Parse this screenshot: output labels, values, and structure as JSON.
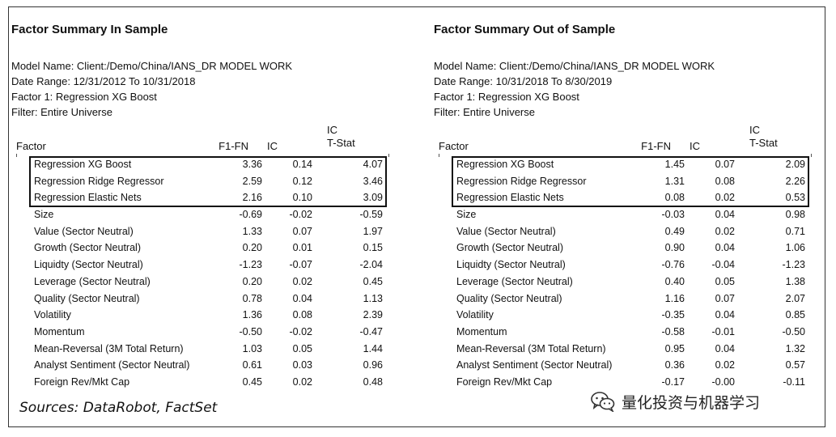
{
  "left": {
    "title": "Factor Summary In Sample",
    "model_name": "Model Name: Client:/Demo/China/IANS_DR MODEL WORK",
    "date_range": "Date Range: 12/31/2012 To 10/31/2018",
    "factor1": "Factor 1: Regression XG Boost",
    "filter": "Filter: Entire Universe",
    "headers": {
      "factor": "Factor",
      "f1fn": "F1-FN",
      "ic": "IC",
      "icts_top": "IC",
      "icts_bot": "T-Stat"
    },
    "rows": [
      {
        "name": "Regression XG Boost",
        "f1fn": "3.36",
        "ic": "0.14",
        "icts": "4.07"
      },
      {
        "name": "Regression Ridge Regressor",
        "f1fn": "2.59",
        "ic": "0.12",
        "icts": "3.46"
      },
      {
        "name": "Regression Elastic Nets",
        "f1fn": "2.16",
        "ic": "0.10",
        "icts": "3.09"
      },
      {
        "name": "Size",
        "f1fn": "-0.69",
        "ic": "-0.02",
        "icts": "-0.59"
      },
      {
        "name": "Value (Sector Neutral)",
        "f1fn": "1.33",
        "ic": "0.07",
        "icts": "1.97"
      },
      {
        "name": "Growth (Sector Neutral)",
        "f1fn": "0.20",
        "ic": "0.01",
        "icts": "0.15"
      },
      {
        "name": "Liquidty (Sector Neutral)",
        "f1fn": "-1.23",
        "ic": "-0.07",
        "icts": "-2.04"
      },
      {
        "name": "Leverage (Sector Neutral)",
        "f1fn": "0.20",
        "ic": "0.02",
        "icts": "0.45"
      },
      {
        "name": "Quality (Sector Neutral)",
        "f1fn": "0.78",
        "ic": "0.04",
        "icts": "1.13"
      },
      {
        "name": "Volatility",
        "f1fn": "1.36",
        "ic": "0.08",
        "icts": "2.39"
      },
      {
        "name": "Momentum",
        "f1fn": "-0.50",
        "ic": "-0.02",
        "icts": "-0.47"
      },
      {
        "name": "Mean-Reversal (3M Total Return)",
        "f1fn": "1.03",
        "ic": "0.05",
        "icts": "1.44"
      },
      {
        "name": "Analyst Sentiment (Sector Neutral)",
        "f1fn": "0.61",
        "ic": "0.03",
        "icts": "0.96"
      },
      {
        "name": "Foreign Rev/Mkt Cap",
        "f1fn": "0.45",
        "ic": "0.02",
        "icts": "0.48"
      }
    ]
  },
  "right": {
    "title": "Factor Summary Out of Sample",
    "model_name": "Model Name: Client:/Demo/China/IANS_DR MODEL WORK",
    "date_range": "Date Range: 10/31/2018 To 8/30/2019",
    "factor1": "Factor 1: Regression XG Boost",
    "filter": "Filter: Entire Universe",
    "headers": {
      "factor": "Factor",
      "f1fn": "F1-FN",
      "ic": "IC",
      "icts_top": "IC",
      "icts_bot": "T-Stat"
    },
    "rows": [
      {
        "name": "Regression XG Boost",
        "f1fn": "1.45",
        "ic": "0.07",
        "icts": "2.09"
      },
      {
        "name": "Regression Ridge Regressor",
        "f1fn": "1.31",
        "ic": "0.08",
        "icts": "2.26"
      },
      {
        "name": "Regression Elastic Nets",
        "f1fn": "0.08",
        "ic": "0.02",
        "icts": "0.53"
      },
      {
        "name": "Size",
        "f1fn": "-0.03",
        "ic": "0.04",
        "icts": "0.98"
      },
      {
        "name": "Value (Sector Neutral)",
        "f1fn": "0.49",
        "ic": "0.02",
        "icts": "0.71"
      },
      {
        "name": "Growth (Sector Neutral)",
        "f1fn": "0.90",
        "ic": "0.04",
        "icts": "1.06"
      },
      {
        "name": "Liquidty (Sector Neutral)",
        "f1fn": "-0.76",
        "ic": "-0.04",
        "icts": "-1.23"
      },
      {
        "name": "Leverage (Sector Neutral)",
        "f1fn": "0.40",
        "ic": "0.05",
        "icts": "1.38"
      },
      {
        "name": "Quality (Sector Neutral)",
        "f1fn": "1.16",
        "ic": "0.07",
        "icts": "2.07"
      },
      {
        "name": "Volatility",
        "f1fn": "-0.35",
        "ic": "0.04",
        "icts": "0.85"
      },
      {
        "name": "Momentum",
        "f1fn": "-0.58",
        "ic": "-0.01",
        "icts": "-0.50"
      },
      {
        "name": "Mean-Reversal (3M Total Return)",
        "f1fn": "0.95",
        "ic": "0.04",
        "icts": "1.32"
      },
      {
        "name": "Analyst Sentiment (Sector Neutral)",
        "f1fn": "0.36",
        "ic": "0.02",
        "icts": "0.57"
      },
      {
        "name": "Foreign Rev/Mkt Cap",
        "f1fn": "-0.17",
        "ic": "-0.00",
        "icts": "-0.11"
      }
    ]
  },
  "source": "Sources: DataRobot, FactSet",
  "watermark": {
    "text": "量化投资与机器学习",
    "icon": "wechat-icon"
  }
}
